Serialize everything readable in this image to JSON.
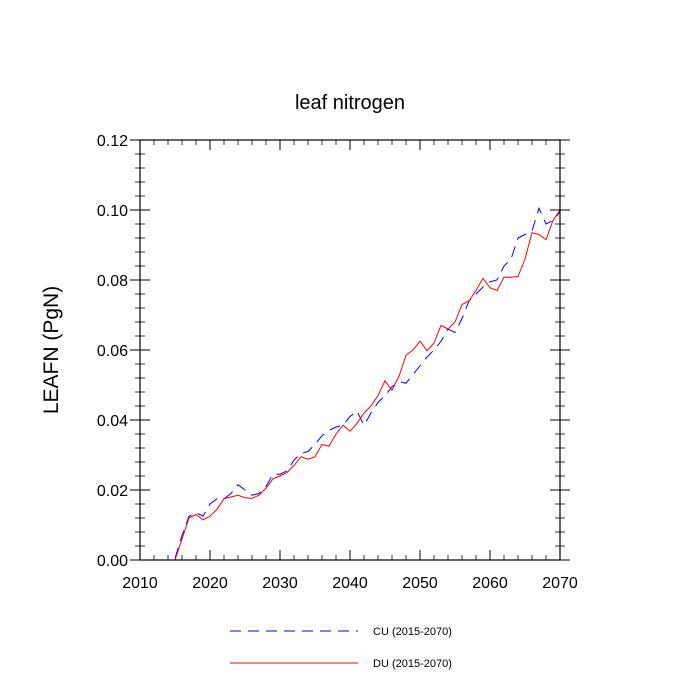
{
  "chart_data": {
    "type": "line",
    "title": "leaf nitrogen",
    "xlabel": "",
    "ylabel": "LEAFN  (PgN)",
    "xlim": [
      2010,
      2070
    ],
    "ylim": [
      0,
      0.12
    ],
    "x_ticks": [
      2010,
      2020,
      2030,
      2040,
      2050,
      2060,
      2070
    ],
    "x_tick_labels": [
      "2010",
      "2020",
      "2030",
      "2040",
      "2050",
      "2060",
      "2070"
    ],
    "y_ticks": [
      0,
      0.02,
      0.04,
      0.06,
      0.08,
      0.1,
      0.12
    ],
    "y_tick_labels": [
      "0.00",
      "0.02",
      "0.04",
      "0.06",
      "0.08",
      "0.10",
      "0.12"
    ],
    "legend_position": "bottom",
    "x": [
      2015,
      2016,
      2017,
      2018,
      2019,
      2020,
      2021,
      2022,
      2023,
      2024,
      2025,
      2026,
      2027,
      2028,
      2029,
      2030,
      2031,
      2032,
      2033,
      2034,
      2035,
      2036,
      2037,
      2038,
      2039,
      2040,
      2041,
      2042,
      2043,
      2044,
      2045,
      2046,
      2047,
      2048,
      2049,
      2050,
      2051,
      2052,
      2053,
      2054,
      2055,
      2056,
      2057,
      2058,
      2059,
      2060,
      2061,
      2062,
      2063,
      2064,
      2065,
      2066,
      2067,
      2068,
      2069,
      2070
    ],
    "series": [
      {
        "name": "CU (2015-2070)",
        "color": "#0000ff",
        "dash": "dashed",
        "values": [
          0.0005,
          0.007,
          0.0125,
          0.0135,
          0.0125,
          0.016,
          0.0175,
          0.0175,
          0.019,
          0.0215,
          0.02,
          0.0185,
          0.019,
          0.021,
          0.0245,
          0.0245,
          0.0255,
          0.0285,
          0.0305,
          0.031,
          0.033,
          0.0355,
          0.037,
          0.038,
          0.0385,
          0.041,
          0.0425,
          0.0385,
          0.042,
          0.045,
          0.047,
          0.0495,
          0.051,
          0.0505,
          0.053,
          0.0555,
          0.058,
          0.06,
          0.0625,
          0.066,
          0.065,
          0.069,
          0.074,
          0.076,
          0.078,
          0.0795,
          0.08,
          0.084,
          0.086,
          0.092,
          0.093,
          0.094,
          0.1005,
          0.096,
          0.097,
          0.0995
        ]
      },
      {
        "name": "DU (2015-2070)",
        "color": "#ff0000",
        "dash": "solid",
        "values": [
          0.0,
          0.006,
          0.012,
          0.013,
          0.0115,
          0.0125,
          0.0145,
          0.0175,
          0.018,
          0.0185,
          0.0178,
          0.0176,
          0.0185,
          0.0205,
          0.0232,
          0.024,
          0.025,
          0.027,
          0.0295,
          0.0288,
          0.0295,
          0.033,
          0.0325,
          0.036,
          0.0385,
          0.0368,
          0.039,
          0.042,
          0.044,
          0.047,
          0.0512,
          0.0485,
          0.0525,
          0.0585,
          0.06,
          0.0625,
          0.0598,
          0.062,
          0.067,
          0.066,
          0.068,
          0.073,
          0.074,
          0.077,
          0.0805,
          0.0778,
          0.077,
          0.0808,
          0.0808,
          0.081,
          0.086,
          0.0935,
          0.093,
          0.0915,
          0.097,
          0.1
        ]
      }
    ]
  }
}
